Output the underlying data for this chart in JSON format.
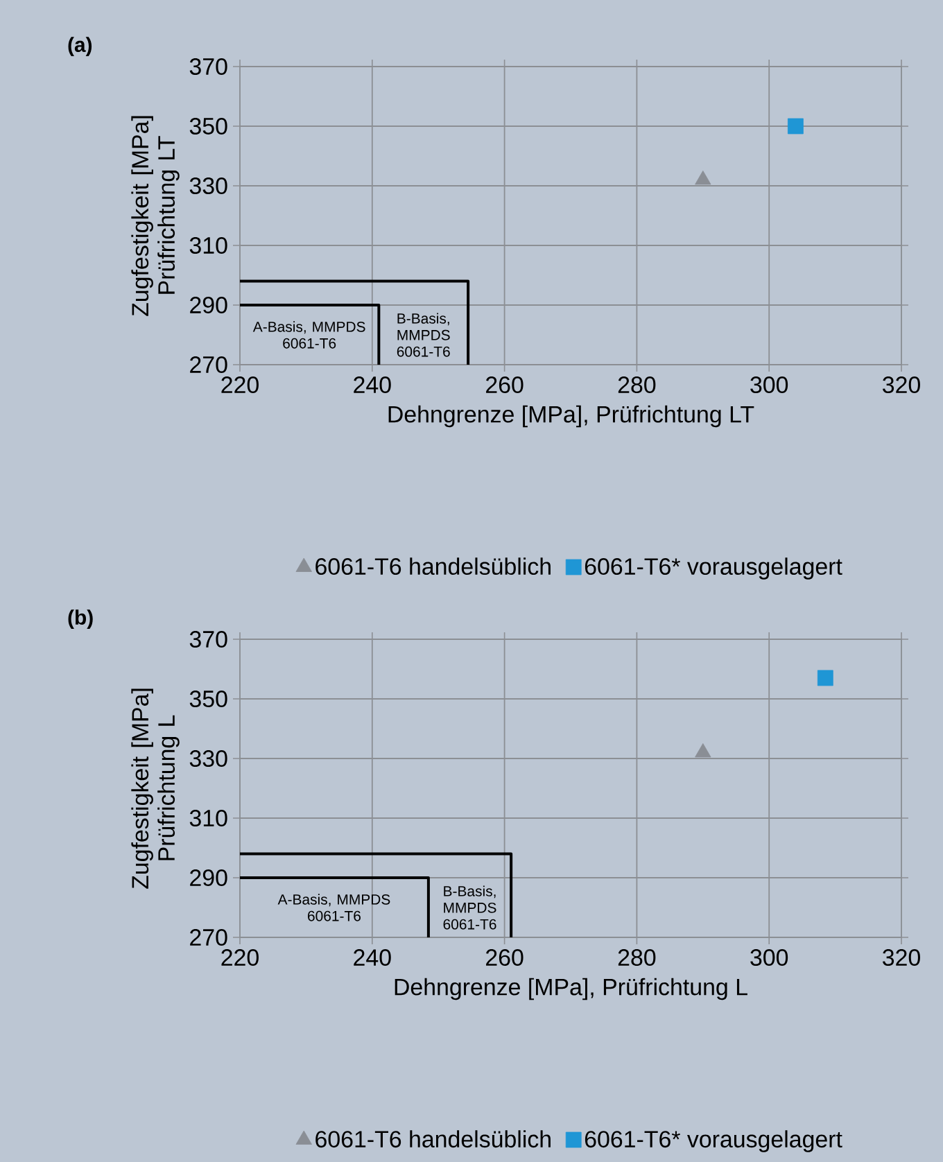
{
  "chart_data": [
    {
      "type": "scatter",
      "title": "(a)",
      "xlabel": "Dehngrenze [MPa], Prüfrichtung LT",
      "ylabel": "Zugfestigkeit [MPa] Prüfrichtung LT",
      "xlim": [
        220,
        320
      ],
      "ylim": [
        270,
        370
      ],
      "xticks": [
        220,
        240,
        260,
        280,
        300,
        320
      ],
      "yticks": [
        270,
        290,
        310,
        330,
        350,
        370
      ],
      "grid": true,
      "legend": "bottom",
      "series": [
        {
          "name": "6061-T6 handelsüblich",
          "color": "#8a8e95",
          "marker": "triangle",
          "x": [
            290
          ],
          "values": [
            332
          ]
        },
        {
          "name": "6061-T6* vorausgelagert",
          "color": "#1f96d5",
          "marker": "square",
          "x": [
            304
          ],
          "values": [
            350
          ]
        },
        {
          "type": "line",
          "color": "#000000",
          "x": [
            220,
            241,
            241
          ],
          "values": [
            290,
            290,
            270
          ]
        },
        {
          "type": "line",
          "color": "#000000",
          "x": [
            220,
            254.5,
            254.5
          ],
          "values": [
            298,
            298,
            270
          ]
        }
      ],
      "annotations": [
        "A-Basis, MMPDS 6061-T6",
        "B-Basis, MMPDS 6061-T6"
      ]
    },
    {
      "type": "scatter",
      "title": "(b)",
      "xlabel": "Dehngrenze [MPa], Prüfrichtung L",
      "ylabel": "Zugfestigkeit [MPa] Prüfrichtung L",
      "xlim": [
        220,
        320
      ],
      "ylim": [
        270,
        370
      ],
      "xticks": [
        220,
        240,
        260,
        280,
        300,
        320
      ],
      "yticks": [
        270,
        290,
        310,
        330,
        350,
        370
      ],
      "grid": true,
      "legend": "bottom",
      "series": [
        {
          "name": "6061-T6 handelsüblich",
          "color": "#8a8e95",
          "marker": "triangle",
          "x": [
            290
          ],
          "values": [
            332
          ]
        },
        {
          "name": "6061-T6* vorausgelagert",
          "color": "#1f96d5",
          "marker": "square",
          "x": [
            308.5
          ],
          "values": [
            357
          ]
        },
        {
          "type": "line",
          "color": "#000000",
          "x": [
            220,
            248.5,
            248.5
          ],
          "values": [
            290,
            290,
            270
          ]
        },
        {
          "type": "line",
          "color": "#000000",
          "x": [
            220,
            261,
            261
          ],
          "values": [
            298,
            298,
            270
          ]
        }
      ],
      "annotations": [
        "A-Basis, MMPDS 6061-T6",
        "B-Basis, MMPDS 6061-T6"
      ]
    }
  ]
}
